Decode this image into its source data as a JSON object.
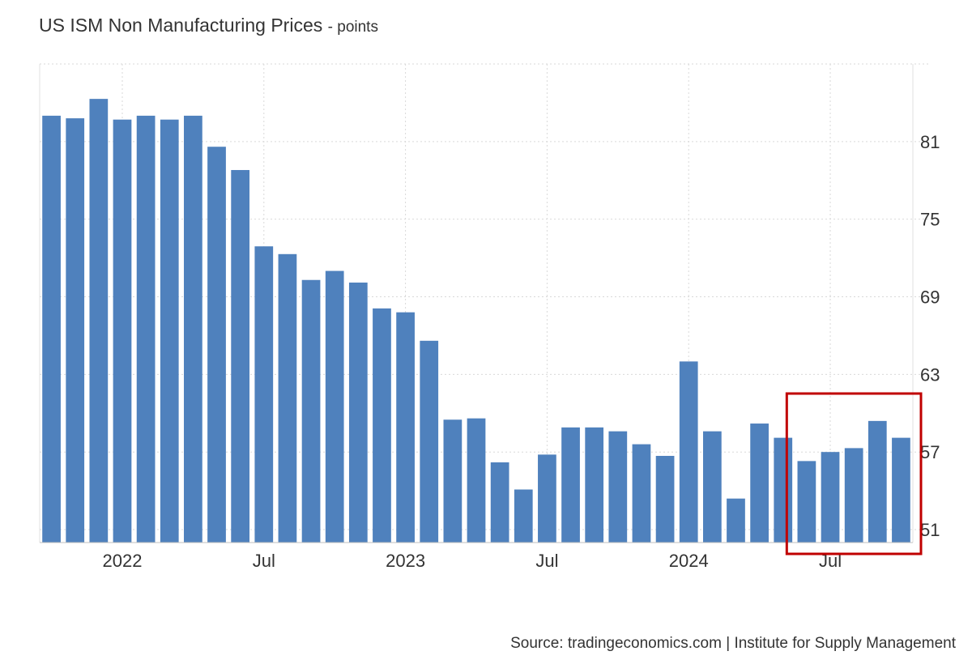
{
  "title": "US ISM Non Manufacturing Prices",
  "title_unit": "- points",
  "source": "Source: tradingeconomics.com | Institute for Supply Management",
  "colors": {
    "bar": "#4f81bd",
    "grid": "#d9d9d9",
    "highlight": "#c00000"
  },
  "chart_data": {
    "type": "bar",
    "title": "US ISM Non Manufacturing Prices",
    "ylabel": "points",
    "xlabel": "",
    "ylim": [
      50,
      87
    ],
    "yticks": [
      51,
      57,
      63,
      69,
      75,
      81
    ],
    "grid": true,
    "x_ticks": [
      {
        "label": "2022",
        "index": 3.5
      },
      {
        "label": "Jul",
        "index": 9.5
      },
      {
        "label": "2023",
        "index": 15.5
      },
      {
        "label": "Jul",
        "index": 21.5
      },
      {
        "label": "2024",
        "index": 27.5
      },
      {
        "label": "Jul",
        "index": 33.5
      }
    ],
    "categories": [
      "2021-10",
      "2021-11",
      "2021-12",
      "2022-01",
      "2022-02",
      "2022-03",
      "2022-04",
      "2022-05",
      "2022-06",
      "2022-07",
      "2022-08",
      "2022-09",
      "2022-10",
      "2022-11",
      "2022-12",
      "2023-01",
      "2023-02",
      "2023-03",
      "2023-04",
      "2023-05",
      "2023-06",
      "2023-07",
      "2023-08",
      "2023-09",
      "2023-10",
      "2023-11",
      "2023-12",
      "2024-01",
      "2024-02",
      "2024-03",
      "2024-04",
      "2024-05",
      "2024-06",
      "2024-07",
      "2024-08",
      "2024-09",
      "2024-10"
    ],
    "values": [
      83.0,
      82.8,
      84.3,
      82.7,
      83.0,
      82.7,
      83.0,
      80.6,
      78.8,
      72.9,
      72.3,
      70.3,
      71.0,
      70.1,
      68.1,
      67.8,
      65.6,
      59.5,
      59.6,
      56.2,
      54.1,
      56.8,
      58.9,
      58.9,
      58.6,
      57.6,
      56.7,
      64.0,
      58.6,
      53.4,
      59.2,
      58.1,
      56.3,
      57.0,
      57.3,
      59.4,
      58.1
    ],
    "highlight": {
      "from_index": 32,
      "to_index": 36,
      "color": "#c00000"
    }
  }
}
